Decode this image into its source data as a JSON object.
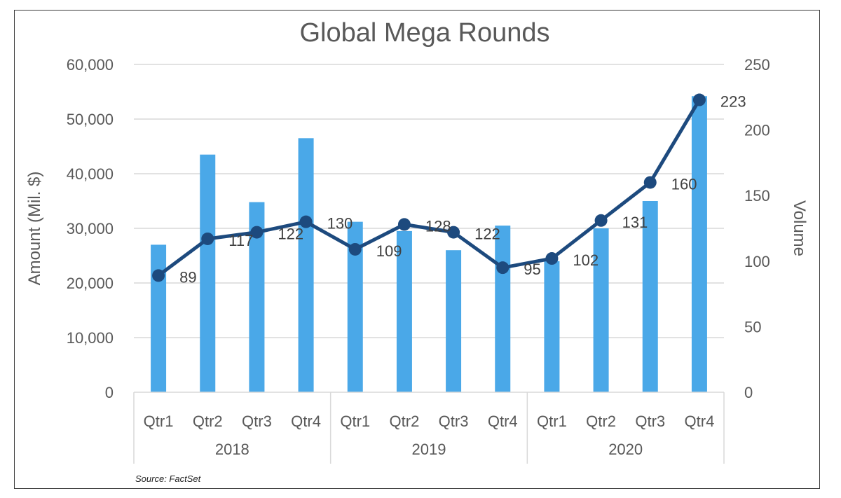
{
  "chart_data": {
    "type": "bar+line",
    "title": "Global Mega Rounds",
    "ylabel": "Amount (Mil. $)",
    "y2label": "Volume",
    "ylim": [
      0,
      60000
    ],
    "y2lim": [
      0,
      250
    ],
    "yticks": [
      "0",
      "10,000",
      "20,000",
      "30,000",
      "40,000",
      "50,000",
      "60,000"
    ],
    "y2ticks": [
      "0",
      "50",
      "100",
      "150",
      "200",
      "250"
    ],
    "categories": [
      "Qtr1",
      "Qtr2",
      "Qtr3",
      "Qtr4",
      "Qtr1",
      "Qtr2",
      "Qtr3",
      "Qtr4",
      "Qtr1",
      "Qtr2",
      "Qtr3",
      "Qtr4"
    ],
    "groups": [
      {
        "label": "2018",
        "span": 4
      },
      {
        "label": "2019",
        "span": 4
      },
      {
        "label": "2020",
        "span": 4
      }
    ],
    "series": [
      {
        "name": "Amount (Mil. $)",
        "type": "bar",
        "axis": "left",
        "color": "#4aa8e8",
        "values": [
          27000,
          43500,
          34800,
          46500,
          31200,
          29500,
          26000,
          30500,
          24000,
          30000,
          35000,
          54200
        ]
      },
      {
        "name": "Volume",
        "type": "line",
        "axis": "right",
        "color": "#1d4a7e",
        "values": [
          89,
          117,
          122,
          130,
          109,
          128,
          122,
          95,
          102,
          131,
          160,
          223
        ],
        "labels": [
          "89",
          "117",
          "122",
          "130",
          "109",
          "128",
          "122",
          "95",
          "102",
          "131",
          "160",
          "223"
        ]
      }
    ],
    "grid": true,
    "source": "Source: FactSet"
  }
}
